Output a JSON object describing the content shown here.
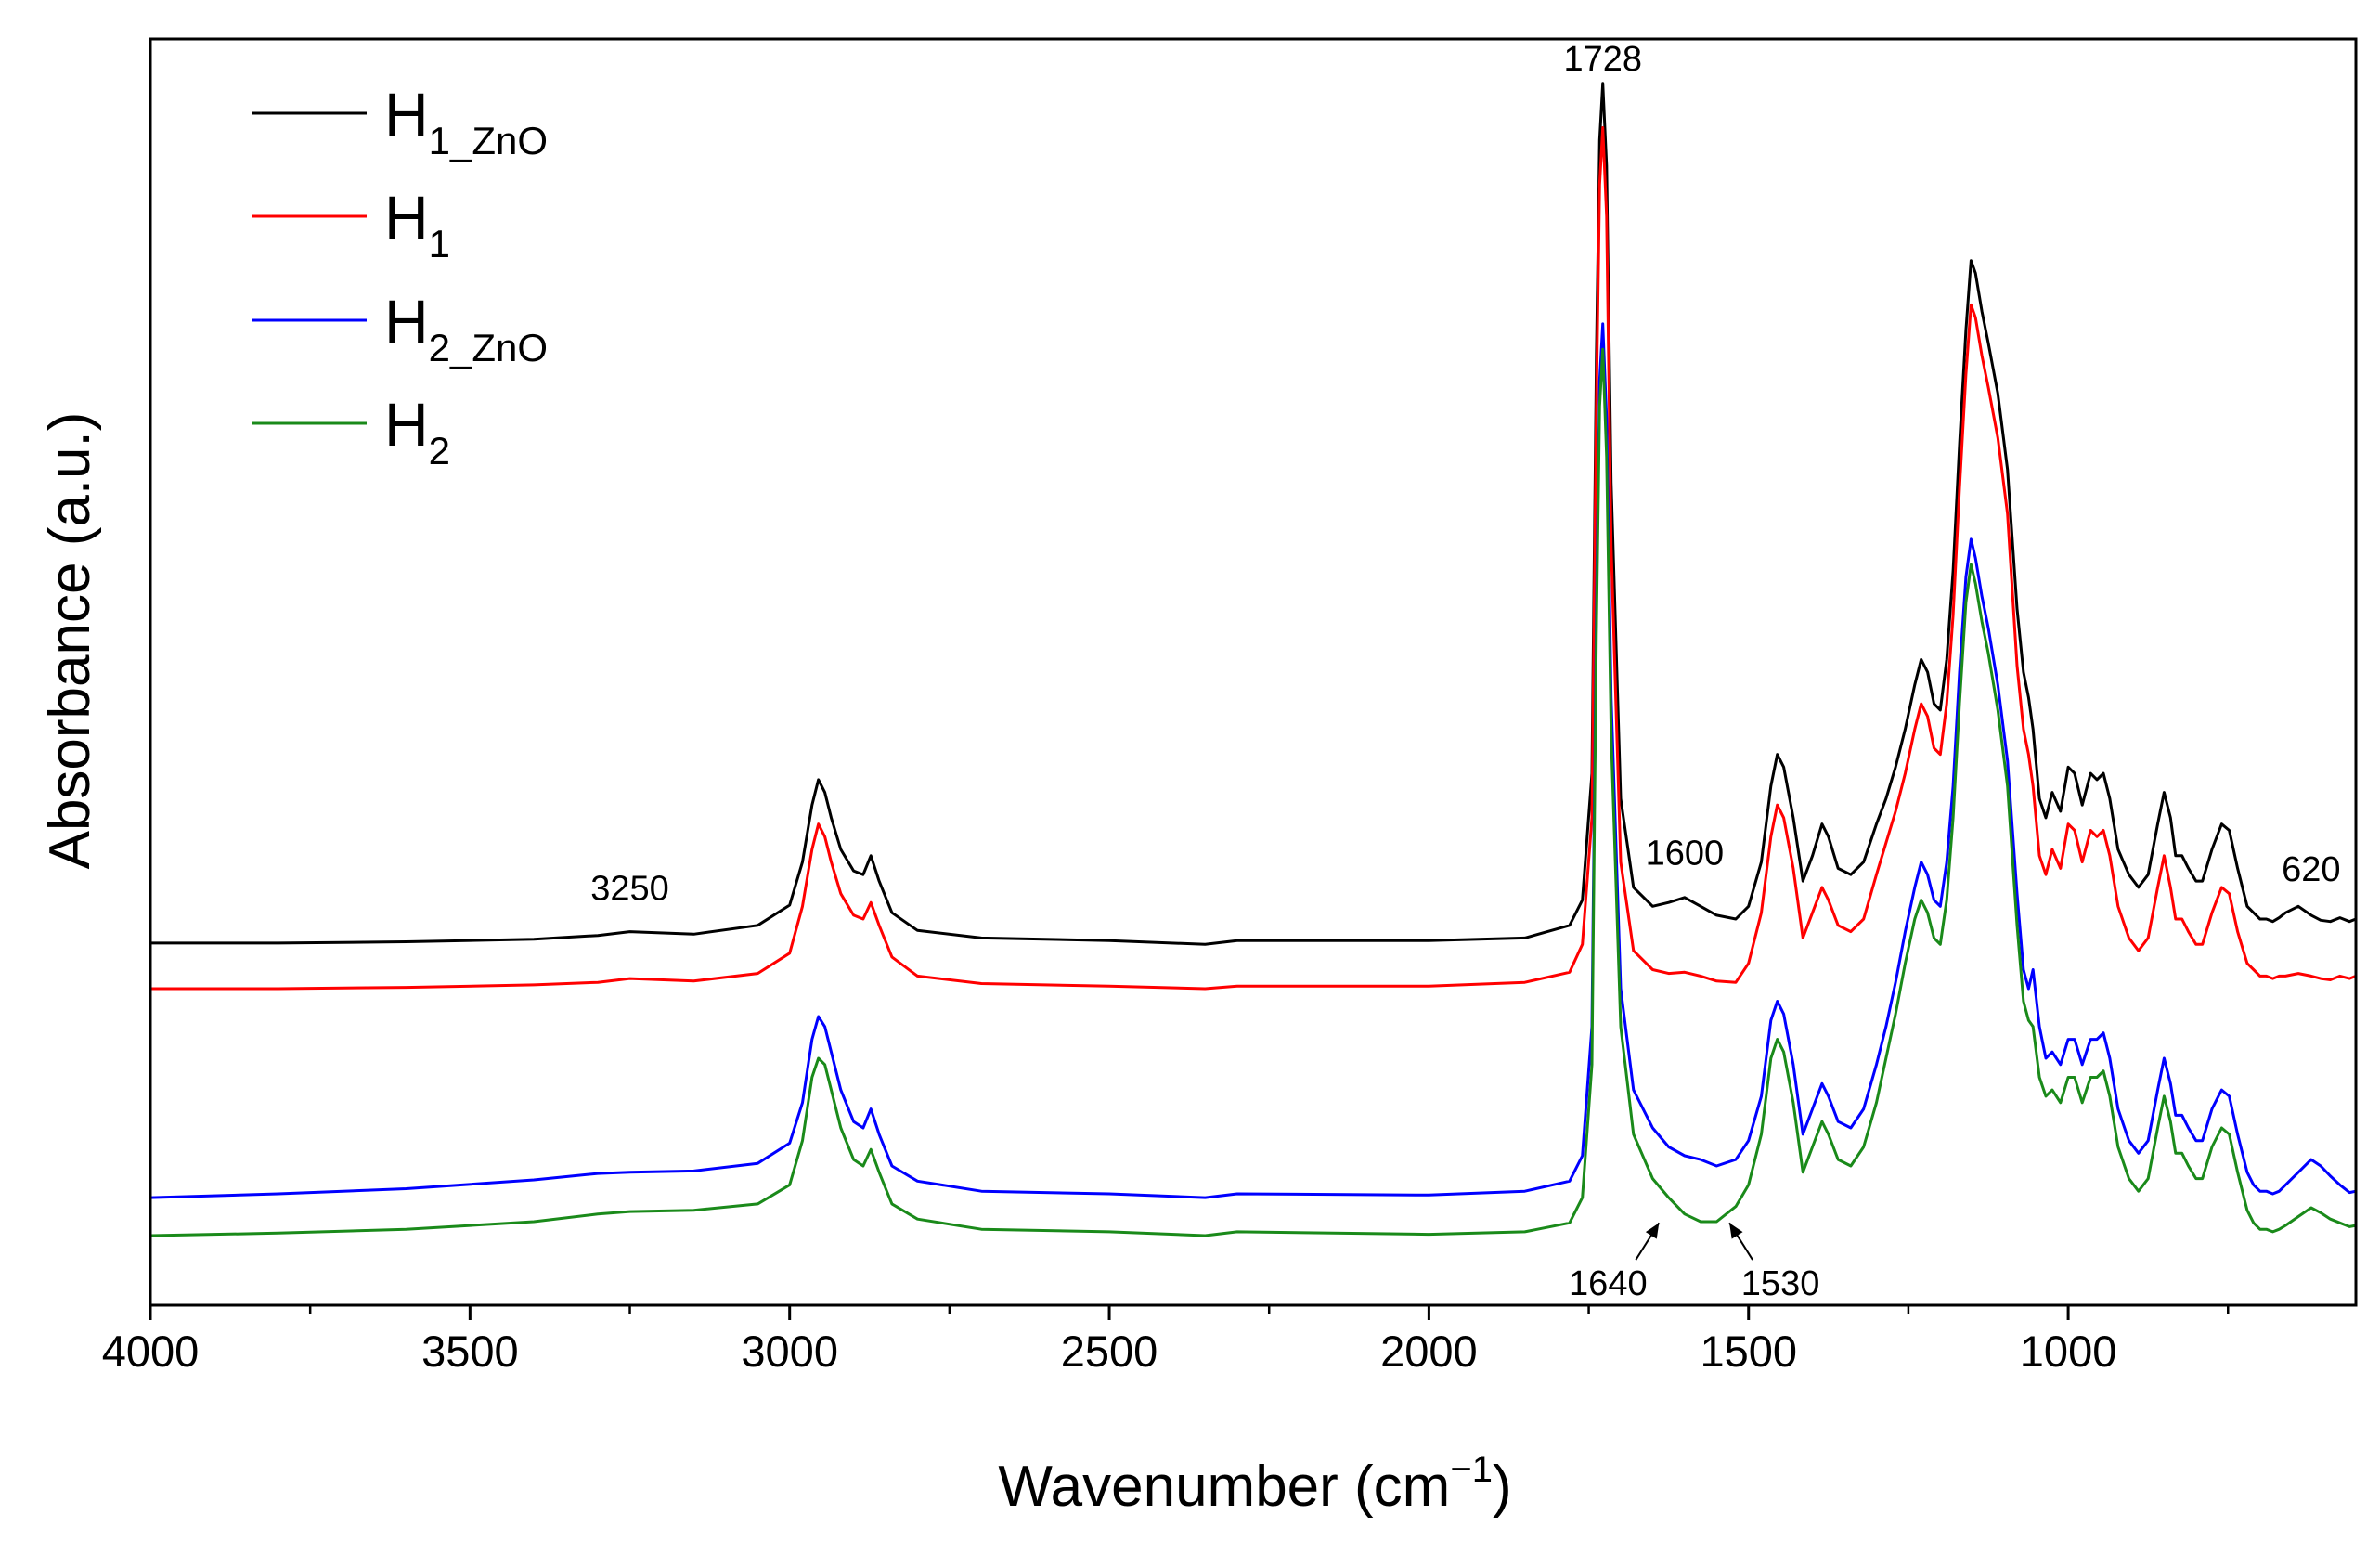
{
  "chart_data": {
    "type": "line",
    "title": "",
    "xlabel": "Wavenumber (cm",
    "xlabel_sup": "−1",
    "xlabel_close": ")",
    "ylabel": "Absorbance (a.u.)",
    "xlim": [
      4000,
      550
    ],
    "ylim": [
      0,
      100
    ],
    "x_reversed": true,
    "x_ticks": [
      4000,
      3500,
      3000,
      2500,
      2000,
      1500,
      1000
    ],
    "x_tick_labels": [
      "4000",
      "3500",
      "3000",
      "2500",
      "2000",
      "1500",
      "1000"
    ],
    "y_ticks_shown": false,
    "grid": false,
    "legend_position": "top-left",
    "series": [
      {
        "name": "H",
        "name_sub": "1_ZnO",
        "color": "#000000",
        "x": [
          4000,
          3800,
          3600,
          3400,
          3300,
          3250,
          3150,
          3050,
          3000,
          2980,
          2965,
          2955,
          2945,
          2935,
          2920,
          2900,
          2885,
          2873,
          2860,
          2840,
          2800,
          2700,
          2500,
          2350,
          2300,
          2000,
          1850,
          1780,
          1760,
          1745,
          1738,
          1733,
          1728,
          1722,
          1715,
          1700,
          1680,
          1650,
          1625,
          1600,
          1575,
          1550,
          1520,
          1500,
          1480,
          1465,
          1455,
          1445,
          1430,
          1415,
          1400,
          1385,
          1375,
          1360,
          1340,
          1320,
          1300,
          1285,
          1270,
          1255,
          1240,
          1230,
          1220,
          1210,
          1200,
          1190,
          1180,
          1170,
          1160,
          1152,
          1145,
          1135,
          1125,
          1110,
          1095,
          1080,
          1070,
          1062,
          1055,
          1045,
          1035,
          1025,
          1012,
          1000,
          990,
          978,
          965,
          955,
          945,
          935,
          922,
          905,
          890,
          875,
          860,
          850,
          840,
          832,
          822,
          812,
          800,
          790,
          775,
          760,
          748,
          735,
          720,
          710,
          700,
          690,
          680,
          670,
          660,
          640,
          620,
          605,
          590,
          575,
          560,
          550
        ],
        "y": [
          28.6,
          28.6,
          28.7,
          28.9,
          29.2,
          29.5,
          29.3,
          30.0,
          31.6,
          35.0,
          39.5,
          41.5,
          40.5,
          38.5,
          36.0,
          34.3,
          34.0,
          35.5,
          33.5,
          31.0,
          29.6,
          29.0,
          28.8,
          28.5,
          28.8,
          28.8,
          29.0,
          30.0,
          32.0,
          42.0,
          75.0,
          92.0,
          96.5,
          90.0,
          65.0,
          40.0,
          33.0,
          31.5,
          31.8,
          32.2,
          31.5,
          30.8,
          30.5,
          31.5,
          35.0,
          41.0,
          43.5,
          42.5,
          38.5,
          33.5,
          35.5,
          38.0,
          37.0,
          34.5,
          34.0,
          35.0,
          38.0,
          40.0,
          42.5,
          45.5,
          49.0,
          51.0,
          50.0,
          47.5,
          47.0,
          51.0,
          58.0,
          68.0,
          77.0,
          82.5,
          81.5,
          78.5,
          76.0,
          72.0,
          66.0,
          55.0,
          50.0,
          48.0,
          45.5,
          40.0,
          38.5,
          40.5,
          39.0,
          42.5,
          42.0,
          39.5,
          42.0,
          41.5,
          42.0,
          40.0,
          36.0,
          34.0,
          33.0,
          34.0,
          38.0,
          40.5,
          38.5,
          35.5,
          35.5,
          34.5,
          33.5,
          33.5,
          36.0,
          38.0,
          37.5,
          34.5,
          31.5,
          31.0,
          30.5,
          30.5,
          30.3,
          30.6,
          31.0,
          31.5,
          30.8,
          30.4,
          30.3,
          30.6,
          30.3,
          30.5
        ]
      },
      {
        "name": "H",
        "name_sub": "1",
        "color": "#ff0000",
        "x": [
          4000,
          3800,
          3600,
          3400,
          3300,
          3250,
          3150,
          3050,
          3000,
          2980,
          2965,
          2955,
          2945,
          2935,
          2920,
          2900,
          2885,
          2873,
          2860,
          2840,
          2800,
          2700,
          2500,
          2350,
          2300,
          2000,
          1850,
          1780,
          1760,
          1745,
          1738,
          1733,
          1728,
          1722,
          1715,
          1700,
          1680,
          1650,
          1625,
          1600,
          1575,
          1550,
          1520,
          1500,
          1480,
          1465,
          1455,
          1445,
          1430,
          1415,
          1400,
          1385,
          1375,
          1360,
          1340,
          1320,
          1300,
          1285,
          1270,
          1255,
          1240,
          1230,
          1220,
          1210,
          1200,
          1190,
          1180,
          1170,
          1160,
          1152,
          1145,
          1135,
          1125,
          1110,
          1095,
          1080,
          1070,
          1062,
          1055,
          1045,
          1035,
          1025,
          1012,
          1000,
          990,
          978,
          965,
          955,
          945,
          935,
          922,
          905,
          890,
          875,
          860,
          850,
          840,
          832,
          822,
          812,
          800,
          790,
          775,
          760,
          748,
          735,
          720,
          710,
          700,
          690,
          680,
          670,
          660,
          640,
          620,
          605,
          590,
          575,
          560,
          550
        ],
        "y": [
          25.0,
          25.0,
          25.1,
          25.3,
          25.5,
          25.8,
          25.6,
          26.2,
          27.8,
          31.5,
          36.0,
          38.0,
          37.0,
          35.0,
          32.5,
          30.8,
          30.5,
          31.8,
          30.0,
          27.5,
          26.0,
          25.4,
          25.2,
          25.0,
          25.2,
          25.2,
          25.5,
          26.3,
          28.5,
          38.5,
          71.0,
          88.5,
          93.0,
          86.0,
          60.0,
          35.0,
          28.0,
          26.5,
          26.2,
          26.3,
          26.0,
          25.6,
          25.5,
          27.0,
          31.0,
          37.0,
          39.5,
          38.5,
          34.5,
          29.0,
          31.0,
          33.0,
          32.0,
          30.0,
          29.5,
          30.5,
          34.0,
          36.5,
          39.0,
          42.0,
          45.5,
          47.5,
          46.5,
          44.0,
          43.5,
          47.5,
          54.5,
          64.5,
          73.5,
          79.0,
          78.0,
          75.0,
          72.5,
          68.5,
          62.5,
          50.5,
          45.5,
          43.5,
          41.0,
          35.5,
          34.0,
          36.0,
          34.5,
          38.0,
          37.5,
          35.0,
          37.5,
          37.0,
          37.5,
          35.5,
          31.5,
          29.0,
          28.0,
          29.0,
          33.0,
          35.5,
          33.0,
          30.5,
          30.5,
          29.5,
          28.5,
          28.5,
          31.0,
          33.0,
          32.5,
          29.5,
          27.0,
          26.5,
          26.0,
          26.0,
          25.8,
          26.0,
          26.0,
          26.2,
          26.0,
          25.8,
          25.7,
          26.0,
          25.8,
          26.0
        ]
      },
      {
        "name": "H",
        "name_sub": "2_ZnO",
        "color": "#0000ff",
        "x": [
          4000,
          3800,
          3600,
          3400,
          3300,
          3250,
          3150,
          3050,
          3000,
          2980,
          2965,
          2955,
          2945,
          2935,
          2920,
          2900,
          2885,
          2873,
          2860,
          2840,
          2800,
          2700,
          2500,
          2350,
          2300,
          2000,
          1850,
          1780,
          1760,
          1745,
          1738,
          1733,
          1728,
          1722,
          1715,
          1700,
          1680,
          1650,
          1625,
          1600,
          1575,
          1550,
          1520,
          1500,
          1480,
          1465,
          1455,
          1445,
          1430,
          1415,
          1400,
          1385,
          1375,
          1360,
          1340,
          1320,
          1300,
          1285,
          1270,
          1255,
          1240,
          1230,
          1220,
          1210,
          1200,
          1190,
          1180,
          1170,
          1160,
          1152,
          1145,
          1135,
          1125,
          1110,
          1095,
          1080,
          1070,
          1062,
          1055,
          1045,
          1035,
          1025,
          1012,
          1000,
          990,
          978,
          965,
          955,
          945,
          935,
          922,
          905,
          890,
          875,
          860,
          850,
          840,
          832,
          822,
          812,
          800,
          790,
          775,
          760,
          748,
          735,
          720,
          710,
          700,
          690,
          680,
          670,
          660,
          640,
          620,
          605,
          590,
          575,
          560,
          550
        ],
        "y": [
          8.5,
          8.8,
          9.2,
          9.9,
          10.4,
          10.5,
          10.6,
          11.2,
          12.8,
          16.0,
          21.0,
          22.8,
          22.0,
          20.0,
          17.0,
          14.5,
          14.0,
          15.5,
          13.5,
          11.0,
          9.8,
          9.0,
          8.8,
          8.5,
          8.8,
          8.7,
          9.0,
          9.8,
          11.8,
          22.0,
          55.0,
          73.0,
          77.5,
          70.0,
          48.0,
          25.0,
          17.0,
          14.0,
          12.5,
          11.8,
          11.5,
          11.0,
          11.5,
          13.0,
          16.5,
          22.5,
          24.0,
          23.0,
          19.0,
          13.5,
          15.5,
          17.5,
          16.5,
          14.5,
          14.0,
          15.5,
          19.0,
          22.0,
          25.5,
          29.5,
          33.0,
          35.0,
          34.0,
          32.0,
          31.5,
          35.0,
          41.0,
          50.0,
          57.5,
          60.5,
          59.0,
          56.0,
          53.5,
          49.0,
          43.0,
          32.5,
          26.5,
          25.0,
          26.5,
          22.0,
          19.5,
          20.0,
          19.0,
          21.0,
          21.0,
          19.0,
          21.0,
          21.0,
          21.5,
          19.5,
          15.5,
          13.0,
          12.0,
          13.0,
          17.0,
          19.5,
          17.5,
          15.0,
          15.0,
          14.0,
          13.0,
          13.0,
          15.5,
          17.0,
          16.5,
          13.5,
          10.5,
          9.5,
          9.0,
          9.0,
          8.8,
          9.0,
          9.5,
          10.5,
          11.5,
          11.0,
          10.2,
          9.5,
          8.9,
          9.0
        ]
      },
      {
        "name": "H",
        "name_sub": "2",
        "color": "#1a8a1a",
        "x": [
          4000,
          3800,
          3600,
          3400,
          3300,
          3250,
          3150,
          3050,
          3000,
          2980,
          2965,
          2955,
          2945,
          2935,
          2920,
          2900,
          2885,
          2873,
          2860,
          2840,
          2800,
          2700,
          2500,
          2350,
          2300,
          2000,
          1850,
          1780,
          1760,
          1745,
          1738,
          1733,
          1728,
          1722,
          1715,
          1700,
          1680,
          1650,
          1625,
          1600,
          1575,
          1550,
          1520,
          1500,
          1480,
          1465,
          1455,
          1445,
          1430,
          1415,
          1400,
          1385,
          1375,
          1360,
          1340,
          1320,
          1300,
          1285,
          1270,
          1255,
          1240,
          1230,
          1220,
          1210,
          1200,
          1190,
          1180,
          1170,
          1160,
          1152,
          1145,
          1135,
          1125,
          1110,
          1095,
          1080,
          1070,
          1062,
          1055,
          1045,
          1035,
          1025,
          1012,
          1000,
          990,
          978,
          965,
          955,
          945,
          935,
          922,
          905,
          890,
          875,
          860,
          850,
          840,
          832,
          822,
          812,
          800,
          790,
          775,
          760,
          748,
          735,
          720,
          710,
          700,
          690,
          680,
          670,
          660,
          640,
          620,
          605,
          590,
          575,
          560,
          550
        ],
        "y": [
          5.5,
          5.7,
          6.0,
          6.6,
          7.2,
          7.4,
          7.5,
          8.0,
          9.5,
          13.0,
          18.0,
          19.5,
          19.0,
          17.0,
          14.0,
          11.5,
          11.0,
          12.3,
          10.5,
          8.0,
          6.8,
          6.0,
          5.8,
          5.5,
          5.8,
          5.6,
          5.8,
          6.5,
          8.5,
          19.0,
          53.0,
          71.0,
          75.5,
          67.0,
          45.0,
          22.0,
          13.5,
          10.0,
          8.5,
          7.2,
          6.6,
          6.6,
          7.8,
          9.5,
          13.5,
          19.5,
          21.0,
          20.0,
          16.0,
          10.5,
          12.5,
          14.5,
          13.5,
          11.5,
          11.0,
          12.5,
          16.0,
          19.5,
          23.0,
          27.0,
          30.5,
          32.0,
          31.0,
          29.0,
          28.5,
          32.0,
          38.5,
          47.5,
          55.5,
          58.5,
          57.0,
          54.0,
          51.5,
          47.0,
          41.0,
          30.0,
          24.0,
          22.5,
          22.0,
          18.0,
          16.5,
          17.0,
          16.0,
          18.0,
          18.0,
          16.0,
          18.0,
          18.0,
          18.5,
          16.5,
          12.5,
          10.0,
          9.0,
          10.0,
          14.0,
          16.5,
          14.5,
          12.0,
          12.0,
          11.0,
          10.0,
          10.0,
          12.5,
          14.0,
          13.5,
          10.5,
          7.5,
          6.5,
          6.0,
          6.0,
          5.8,
          6.0,
          6.3,
          7.0,
          7.7,
          7.3,
          6.8,
          6.5,
          6.2,
          6.3
        ]
      }
    ],
    "annotations": [
      {
        "text": "1728",
        "x": 1728,
        "y": 97.5
      },
      {
        "text": "3250",
        "x": 3250,
        "y": 32.0
      },
      {
        "text": "1600",
        "x": 1600,
        "y": 34.8
      },
      {
        "text": "620",
        "x": 620,
        "y": 33.5
      },
      {
        "text": "1640",
        "x": 1640,
        "y": 0.8,
        "arrow_to": [
          1640,
          6.5
        ]
      },
      {
        "text": "1530",
        "x": 1530,
        "y": 0.8,
        "arrow_to": [
          1530,
          6.5
        ]
      }
    ]
  }
}
